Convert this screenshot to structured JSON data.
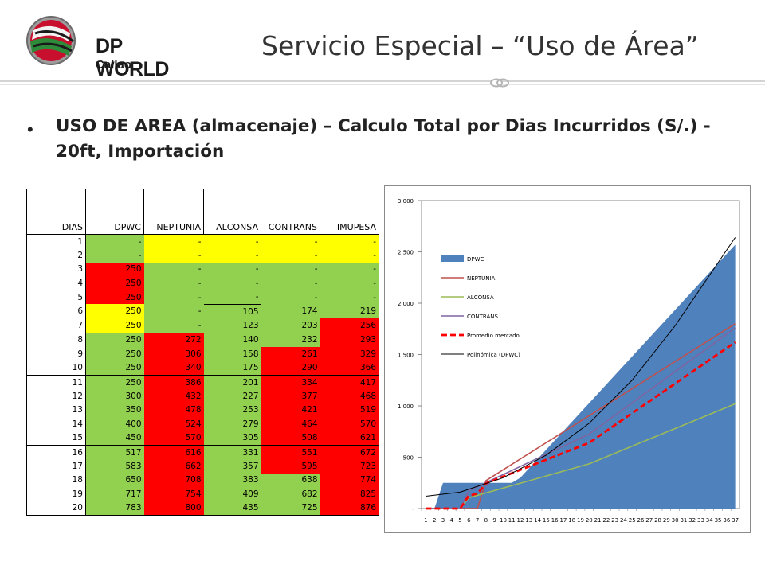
{
  "header": {
    "logo_line1": "DP WORLD",
    "logo_line2": "Callao",
    "title": "Servicio Especial – “Uso de Área”"
  },
  "bullet": "USO DE AREA (almacenaje) – Calculo Total por Dias Incurridos (S/.) - 20ft, Importación",
  "colors": {
    "green": "#92d050",
    "yellow": "#ffff00",
    "red": "#ff0000",
    "dpwc_fill": "#4f81bd",
    "neptunia": "#c0504d",
    "alconsa": "#9bbb59",
    "contrans": "#8064a2",
    "promedio": "#ff0000",
    "polinomica": "#000000"
  },
  "table": {
    "headers": [
      "DIAS",
      "DPWC",
      "NEPTUNIA",
      "ALCONSA",
      "CONTRANS",
      "IMUPESA"
    ],
    "rows": [
      {
        "d": "1",
        "c": [
          {
            "v": "-",
            "k": "g"
          },
          {
            "v": "-",
            "k": "y"
          },
          {
            "v": "-",
            "k": "y"
          },
          {
            "v": "-",
            "k": "y"
          },
          {
            "v": "-",
            "k": "y"
          }
        ]
      },
      {
        "d": "2",
        "c": [
          {
            "v": "-",
            "k": "g"
          },
          {
            "v": "-",
            "k": "y"
          },
          {
            "v": "-",
            "k": "y"
          },
          {
            "v": "-",
            "k": "y"
          },
          {
            "v": "-",
            "k": "y"
          }
        ]
      },
      {
        "d": "3",
        "c": [
          {
            "v": "250",
            "k": "r"
          },
          {
            "v": "-",
            "k": "g"
          },
          {
            "v": "-",
            "k": "g"
          },
          {
            "v": "-",
            "k": "g"
          },
          {
            "v": "-",
            "k": "g"
          }
        ]
      },
      {
        "d": "4",
        "c": [
          {
            "v": "250",
            "k": "r"
          },
          {
            "v": "-",
            "k": "g"
          },
          {
            "v": "-",
            "k": "g"
          },
          {
            "v": "-",
            "k": "g"
          },
          {
            "v": "-",
            "k": "g"
          }
        ]
      },
      {
        "d": "5",
        "c": [
          {
            "v": "250",
            "k": "r"
          },
          {
            "v": "-",
            "k": "g"
          },
          {
            "v": "-",
            "k": "g"
          },
          {
            "v": "-",
            "k": "g"
          },
          {
            "v": "-",
            "k": "g"
          }
        ]
      },
      {
        "d": "6",
        "c": [
          {
            "v": "250",
            "k": "y"
          },
          {
            "v": "-",
            "k": "g"
          },
          {
            "v": "105",
            "k": "g"
          },
          {
            "v": "174",
            "k": "g"
          },
          {
            "v": "219",
            "k": "g"
          }
        ]
      },
      {
        "d": "7",
        "c": [
          {
            "v": "250",
            "k": "y"
          },
          {
            "v": "-",
            "k": "g"
          },
          {
            "v": "123",
            "k": "g"
          },
          {
            "v": "203",
            "k": "g"
          },
          {
            "v": "256",
            "k": "r"
          }
        ]
      },
      {
        "d": "8",
        "c": [
          {
            "v": "250",
            "k": "g"
          },
          {
            "v": "272",
            "k": "r"
          },
          {
            "v": "140",
            "k": "g"
          },
          {
            "v": "232",
            "k": "g"
          },
          {
            "v": "293",
            "k": "r"
          }
        ]
      },
      {
        "d": "9",
        "c": [
          {
            "v": "250",
            "k": "g"
          },
          {
            "v": "306",
            "k": "r"
          },
          {
            "v": "158",
            "k": "g"
          },
          {
            "v": "261",
            "k": "r"
          },
          {
            "v": "329",
            "k": "r"
          }
        ]
      },
      {
        "d": "10",
        "c": [
          {
            "v": "250",
            "k": "g"
          },
          {
            "v": "340",
            "k": "r"
          },
          {
            "v": "175",
            "k": "g"
          },
          {
            "v": "290",
            "k": "r"
          },
          {
            "v": "366",
            "k": "r"
          }
        ]
      },
      {
        "d": "11",
        "c": [
          {
            "v": "250",
            "k": "g"
          },
          {
            "v": "386",
            "k": "r"
          },
          {
            "v": "201",
            "k": "g"
          },
          {
            "v": "334",
            "k": "r"
          },
          {
            "v": "417",
            "k": "r"
          }
        ]
      },
      {
        "d": "12",
        "c": [
          {
            "v": "300",
            "k": "g"
          },
          {
            "v": "432",
            "k": "r"
          },
          {
            "v": "227",
            "k": "g"
          },
          {
            "v": "377",
            "k": "r"
          },
          {
            "v": "468",
            "k": "r"
          }
        ]
      },
      {
        "d": "13",
        "c": [
          {
            "v": "350",
            "k": "g"
          },
          {
            "v": "478",
            "k": "r"
          },
          {
            "v": "253",
            "k": "g"
          },
          {
            "v": "421",
            "k": "r"
          },
          {
            "v": "519",
            "k": "r"
          }
        ]
      },
      {
        "d": "14",
        "c": [
          {
            "v": "400",
            "k": "g"
          },
          {
            "v": "524",
            "k": "r"
          },
          {
            "v": "279",
            "k": "g"
          },
          {
            "v": "464",
            "k": "r"
          },
          {
            "v": "570",
            "k": "r"
          }
        ]
      },
      {
        "d": "15",
        "c": [
          {
            "v": "450",
            "k": "g"
          },
          {
            "v": "570",
            "k": "r"
          },
          {
            "v": "305",
            "k": "g"
          },
          {
            "v": "508",
            "k": "r"
          },
          {
            "v": "621",
            "k": "r"
          }
        ]
      },
      {
        "d": "16",
        "c": [
          {
            "v": "517",
            "k": "g"
          },
          {
            "v": "616",
            "k": "r"
          },
          {
            "v": "331",
            "k": "g"
          },
          {
            "v": "551",
            "k": "r"
          },
          {
            "v": "672",
            "k": "r"
          }
        ]
      },
      {
        "d": "17",
        "c": [
          {
            "v": "583",
            "k": "g"
          },
          {
            "v": "662",
            "k": "r"
          },
          {
            "v": "357",
            "k": "g"
          },
          {
            "v": "595",
            "k": "r"
          },
          {
            "v": "723",
            "k": "r"
          }
        ]
      },
      {
        "d": "18",
        "c": [
          {
            "v": "650",
            "k": "g"
          },
          {
            "v": "708",
            "k": "r"
          },
          {
            "v": "383",
            "k": "g"
          },
          {
            "v": "638",
            "k": "g"
          },
          {
            "v": "774",
            "k": "r"
          }
        ]
      },
      {
        "d": "19",
        "c": [
          {
            "v": "717",
            "k": "g"
          },
          {
            "v": "754",
            "k": "r"
          },
          {
            "v": "409",
            "k": "g"
          },
          {
            "v": "682",
            "k": "g"
          },
          {
            "v": "825",
            "k": "r"
          }
        ]
      },
      {
        "d": "20",
        "c": [
          {
            "v": "783",
            "k": "g"
          },
          {
            "v": "800",
            "k": "r"
          },
          {
            "v": "435",
            "k": "g"
          },
          {
            "v": "725",
            "k": "g"
          },
          {
            "v": "876",
            "k": "r"
          }
        ]
      }
    ]
  },
  "chart_data": {
    "type": "area",
    "title": "",
    "xlabel": "",
    "ylabel": "",
    "ylim": [
      0,
      3000
    ],
    "yticks": [
      0,
      500,
      1000,
      1500,
      2000,
      2500,
      3000
    ],
    "ytick_labels": [
      "-",
      "500",
      "1,000",
      "1,500",
      "2,000",
      "2,500",
      "3,000"
    ],
    "xlim": [
      1,
      37
    ],
    "grid": false,
    "legend_position": "top-left",
    "series": [
      {
        "name": "DPWC",
        "kind": "area",
        "x": [
          1,
          2,
          3,
          7,
          8,
          11,
          12,
          37
        ],
        "y": [
          0,
          0,
          250,
          250,
          250,
          250,
          300,
          2570
        ]
      },
      {
        "name": "NEPTUNIA",
        "kind": "line",
        "x": [
          1,
          7,
          8,
          37
        ],
        "y": [
          0,
          0,
          272,
          1800
        ]
      },
      {
        "name": "ALCONSA",
        "kind": "line",
        "x": [
          1,
          5,
          6,
          20,
          37
        ],
        "y": [
          0,
          0,
          105,
          435,
          1020
        ]
      },
      {
        "name": "CONTRANS",
        "kind": "line",
        "x": [
          1,
          5,
          6,
          20,
          37
        ],
        "y": [
          0,
          0,
          174,
          725,
          1760
        ]
      },
      {
        "name": "Promedio mercado",
        "kind": "dashed",
        "x": [
          1,
          5,
          6,
          7,
          8,
          20,
          37
        ],
        "y": [
          0,
          0,
          125,
          145,
          245,
          640,
          1620
        ]
      },
      {
        "name": "Polinómica (DPWC)",
        "kind": "line",
        "x": [
          1,
          5,
          10,
          15,
          20,
          25,
          30,
          37
        ],
        "y": [
          120,
          160,
          300,
          520,
          830,
          1250,
          1780,
          2640
        ]
      }
    ]
  }
}
